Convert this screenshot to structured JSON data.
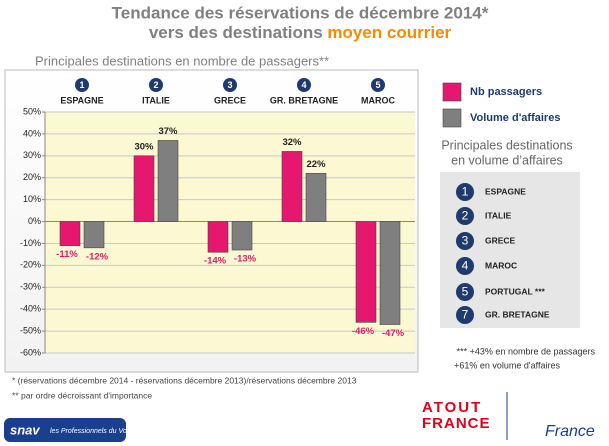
{
  "title": "Tendance des réservations de décembre 2014*",
  "title_line2": "vers des destinations",
  "title_highlight": "moyen courrier",
  "chart_data": {
    "type": "bar",
    "subtitle": "Principales destinations en nombre de passagers**",
    "categories": [
      "ESPAGNE",
      "ITALIE",
      "GRECE",
      "GR. BRETAGNE",
      "MAROC"
    ],
    "category_ranks": [
      1,
      2,
      3,
      4,
      5
    ],
    "series": [
      {
        "name": "Nb passagers",
        "color": "#e5176e",
        "values": [
          -11,
          30,
          -14,
          32,
          -46
        ],
        "value_labels": [
          "-11%",
          "30%",
          "-14%",
          "32%",
          "-46%"
        ]
      },
      {
        "name": "Volume d'affaires",
        "color": "#7f7f7f",
        "values": [
          -12,
          37,
          -13,
          22,
          -47
        ],
        "value_labels": [
          "-12%",
          "37%",
          "-13%",
          "22%",
          "-47%"
        ]
      }
    ],
    "ylim": [
      -60,
      50
    ],
    "yticks": [
      {
        "value": -60,
        "label": "-60%"
      },
      {
        "value": -50,
        "label": "-50%"
      },
      {
        "value": -40,
        "label": "-40%"
      },
      {
        "value": -30,
        "label": "-30%"
      },
      {
        "value": -20,
        "label": "-20%"
      },
      {
        "value": -10,
        "label": "-10%"
      },
      {
        "value": 0,
        "label": "0%"
      },
      {
        "value": 10,
        "label": "10%"
      },
      {
        "value": 20,
        "label": "20%"
      },
      {
        "value": 30,
        "label": "30%"
      },
      {
        "value": 40,
        "label": "40%"
      },
      {
        "value": 50,
        "label": "50%"
      }
    ],
    "grid": true
  },
  "ranking": {
    "title": [
      "Principales destinations",
      "en volume d’affaires"
    ],
    "items": [
      {
        "rank": 1,
        "name": "ESPAGNE"
      },
      {
        "rank": 2,
        "name": "ITALIE"
      },
      {
        "rank": 3,
        "name": "GRECE"
      },
      {
        "rank": 4,
        "name": "MAROC"
      },
      {
        "rank": 5,
        "name": "PORTUGAL ***"
      },
      {
        "rank": 7,
        "name": "GR. BRETAGNE"
      }
    ]
  },
  "note": [
    "*** +43% en nombre de passagers",
    "+61% en volume d'affaires"
  ],
  "footnotes": [
    "* (réservations décembre 2014 - réservations décembre 2013)/réservations décembre 2013",
    "** par ordre décroissant d'importance"
  ],
  "logos": [
    "snav",
    "les Professionnels du Voyage",
    "ATOUT",
    "FRANCE",
    "France"
  ]
}
